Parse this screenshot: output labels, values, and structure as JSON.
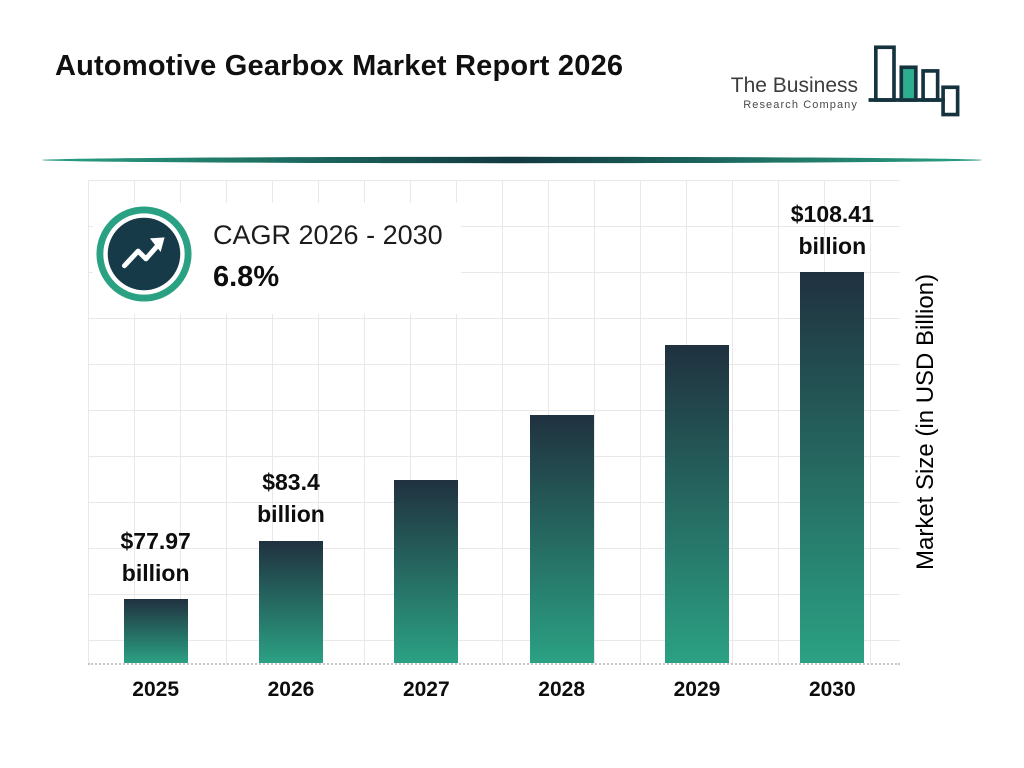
{
  "header": {
    "title": "Automotive Gearbox Market Report 2026",
    "logo": {
      "line1": "The Business",
      "line2": "Research Company"
    }
  },
  "cagr": {
    "label": "CAGR 2026 - 2030",
    "value": "6.8%"
  },
  "chart_data": {
    "type": "bar",
    "title": "Automotive Gearbox Market Report 2026",
    "categories": [
      "2025",
      "2026",
      "2027",
      "2028",
      "2029",
      "2030"
    ],
    "values": [
      77.97,
      83.4,
      89.07,
      95.13,
      101.6,
      108.41
    ],
    "value_labels": [
      {
        "amount": "$77.97",
        "unit": "billion"
      },
      {
        "amount": "$83.4",
        "unit": "billion"
      },
      null,
      null,
      null,
      {
        "amount": "$108.41",
        "unit": "billion"
      }
    ],
    "xlabel": "",
    "ylabel": "Market Size (in USD Billion)",
    "ylim": [
      72,
      117
    ],
    "grid": true,
    "legend": false,
    "bar_gradient": {
      "top": "#20313f",
      "bottom": "#2ba183"
    },
    "colors": {
      "accent_teal": "#2aa183",
      "dark_navy": "#14333f",
      "grid": "#e8e8e8",
      "text": "#0d0d0d"
    }
  }
}
